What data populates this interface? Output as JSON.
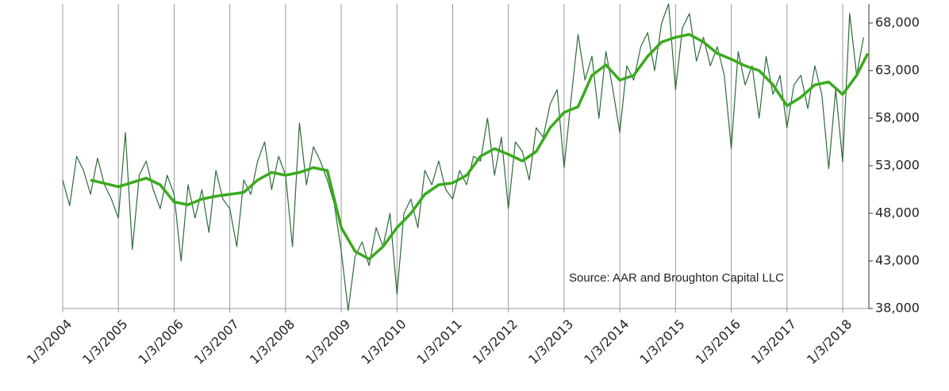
{
  "chart_data": {
    "type": "line",
    "annotation": "Source: AAR and Broughton Capital LLC",
    "xlim": [
      2004,
      2018.47
    ],
    "xticks": [
      {
        "value": 2004,
        "label": "1/3/2004"
      },
      {
        "value": 2005,
        "label": "1/3/2005"
      },
      {
        "value": 2006,
        "label": "1/3/2006"
      },
      {
        "value": 2007,
        "label": "1/3/2007"
      },
      {
        "value": 2008,
        "label": "1/3/2008"
      },
      {
        "value": 2009,
        "label": "1/3/2009"
      },
      {
        "value": 2010,
        "label": "1/3/2010"
      },
      {
        "value": 2011,
        "label": "1/3/2011"
      },
      {
        "value": 2012,
        "label": "1/3/2012"
      },
      {
        "value": 2013,
        "label": "1/3/2013"
      },
      {
        "value": 2014,
        "label": "1/3/2014"
      },
      {
        "value": 2015,
        "label": "1/3/2015"
      },
      {
        "value": 2016,
        "label": "1/3/2016"
      },
      {
        "value": 2017,
        "label": "1/3/2017"
      },
      {
        "value": 2018,
        "label": "1/3/2018"
      }
    ],
    "ylim": [
      38000,
      70000
    ],
    "yticks": [
      {
        "value": 38000,
        "label": "38,000"
      },
      {
        "value": 43000,
        "label": "43,000"
      },
      {
        "value": 48000,
        "label": "48,000"
      },
      {
        "value": 53000,
        "label": "53,000"
      },
      {
        "value": 58000,
        "label": "58,000"
      },
      {
        "value": 63000,
        "label": "63,000"
      },
      {
        "value": 68000,
        "label": "68,000"
      }
    ],
    "grid": "x",
    "series": [
      {
        "color": "#2e6b3a",
        "x": [
          2004,
          2004.125,
          2004.25,
          2004.375,
          2004.5,
          2004.625,
          2004.75,
          2004.875,
          2005,
          2005.125,
          2005.25,
          2005.375,
          2005.5,
          2005.625,
          2005.75,
          2005.875,
          2006,
          2006.125,
          2006.25,
          2006.375,
          2006.5,
          2006.625,
          2006.75,
          2006.875,
          2007,
          2007.125,
          2007.25,
          2007.375,
          2007.5,
          2007.625,
          2007.75,
          2007.875,
          2008,
          2008.125,
          2008.25,
          2008.375,
          2008.5,
          2008.625,
          2008.75,
          2008.875,
          2009,
          2009.125,
          2009.25,
          2009.375,
          2009.5,
          2009.625,
          2009.75,
          2009.875,
          2010,
          2010.125,
          2010.25,
          2010.375,
          2010.5,
          2010.625,
          2010.75,
          2010.875,
          2011,
          2011.125,
          2011.25,
          2011.375,
          2011.5,
          2011.625,
          2011.75,
          2011.875,
          2012,
          2012.125,
          2012.25,
          2012.375,
          2012.5,
          2012.625,
          2012.75,
          2012.875,
          2013,
          2013.125,
          2013.25,
          2013.375,
          2013.5,
          2013.625,
          2013.75,
          2013.875,
          2014,
          2014.125,
          2014.25,
          2014.375,
          2014.5,
          2014.625,
          2014.75,
          2014.875,
          2015,
          2015.125,
          2015.25,
          2015.375,
          2015.5,
          2015.625,
          2015.75,
          2015.875,
          2016,
          2016.125,
          2016.25,
          2016.375,
          2016.5,
          2016.625,
          2016.75,
          2016.875,
          2017,
          2017.125,
          2017.25,
          2017.375,
          2017.5,
          2017.625,
          2017.75,
          2017.875,
          2018,
          2018.125,
          2018.25,
          2018.375
        ],
        "values": [
          51500,
          48800,
          54000,
          52500,
          50000,
          53800,
          51000,
          49500,
          47500,
          56500,
          44200,
          52000,
          53500,
          50500,
          48500,
          52000,
          50000,
          43000,
          51000,
          47500,
          50500,
          46000,
          52500,
          49500,
          48500,
          44500,
          51500,
          50000,
          53500,
          55500,
          50500,
          54000,
          52000,
          44500,
          57500,
          51000,
          55000,
          53500,
          51500,
          49000,
          44000,
          37800,
          43500,
          45000,
          42500,
          46500,
          44500,
          48000,
          39500,
          48000,
          49500,
          46500,
          52500,
          51000,
          53500,
          50500,
          49500,
          52500,
          51000,
          54000,
          53500,
          58000,
          52000,
          56000,
          48500,
          55500,
          54500,
          51500,
          57000,
          56000,
          59500,
          61000,
          52800,
          60000,
          66800,
          62000,
          64500,
          58000,
          65000,
          61000,
          56500,
          63500,
          62000,
          65500,
          67000,
          63000,
          68000,
          70000,
          61000,
          67500,
          69000,
          64000,
          66500,
          63500,
          65500,
          62500,
          54800,
          65000,
          61500,
          63500,
          58000,
          64500,
          60500,
          62500,
          57000,
          61500,
          62500,
          59000,
          63500,
          60500,
          52700,
          61000,
          53400,
          69000,
          62500,
          66500
        ]
      },
      {
        "color": "#3aaa1e",
        "x": [
          2004.5,
          2005,
          2005.5,
          2005.75,
          2006,
          2006.25,
          2006.5,
          2006.75,
          2007,
          2007.25,
          2007.5,
          2007.75,
          2008,
          2008.25,
          2008.5,
          2008.75,
          2009,
          2009.25,
          2009.5,
          2009.75,
          2010,
          2010.25,
          2010.5,
          2010.75,
          2011,
          2011.25,
          2011.5,
          2011.75,
          2012,
          2012.25,
          2012.5,
          2012.75,
          2013,
          2013.25,
          2013.5,
          2013.75,
          2014,
          2014.25,
          2014.5,
          2014.75,
          2015,
          2015.25,
          2015.5,
          2015.75,
          2016,
          2016.25,
          2016.5,
          2016.75,
          2017,
          2017.25,
          2017.5,
          2017.75,
          2018,
          2018.25,
          2018.45
        ],
        "values": [
          51500,
          50800,
          51700,
          51000,
          49200,
          48900,
          49500,
          49800,
          50000,
          50200,
          51500,
          52300,
          52000,
          52300,
          52800,
          52500,
          46500,
          44000,
          43200,
          44500,
          46500,
          48000,
          50000,
          51000,
          51200,
          52000,
          54000,
          54800,
          54200,
          53500,
          54500,
          57000,
          58600,
          59200,
          62500,
          63600,
          62000,
          62500,
          64500,
          66000,
          66500,
          66800,
          66000,
          64800,
          64200,
          63500,
          63000,
          61500,
          59300,
          60200,
          61500,
          61800,
          60500,
          62500,
          64800
        ]
      }
    ]
  }
}
